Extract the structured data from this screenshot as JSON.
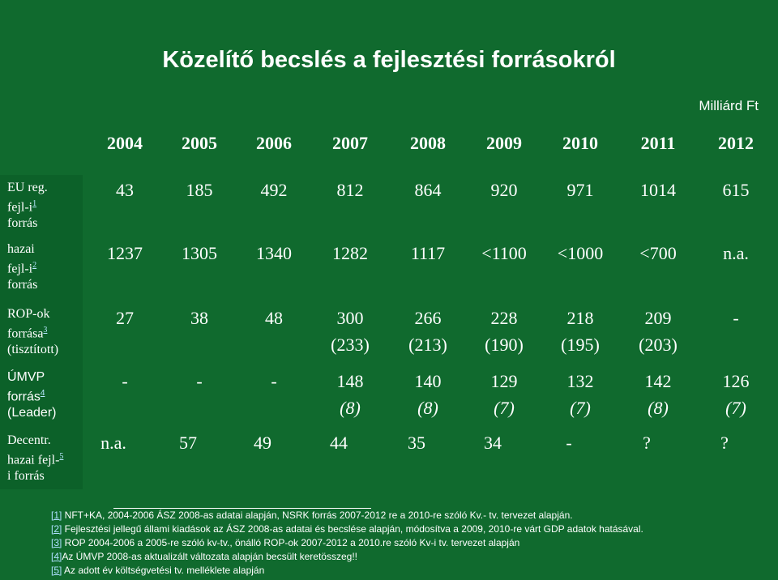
{
  "title": "Közelítő becslés a fejlesztési forrásokról",
  "unit": "Milliárd Ft",
  "years": [
    "2004",
    "2005",
    "2006",
    "2007",
    "2008",
    "2009",
    "2010",
    "2011",
    "2012"
  ],
  "rows": [
    {
      "label_lines": [
        "EU reg.",
        "fejl-i",
        "forrás"
      ],
      "ref": "1",
      "values": [
        "43",
        "185",
        "492",
        "812",
        "864",
        "920",
        "971",
        "1014",
        "615"
      ]
    },
    {
      "label_lines": [
        "hazai",
        "fejl-i",
        "forrás"
      ],
      "ref": "2",
      "values": [
        "1237",
        "1305",
        "1340",
        "1282",
        "1117",
        "<1100",
        "<1000",
        "<700",
        "n.a."
      ]
    },
    {
      "label_lines": [
        "ROP-ok",
        "forrása",
        "(tisztított)"
      ],
      "ref": "3",
      "values": [
        "27",
        "38",
        "48",
        "300",
        "266",
        "228",
        "218",
        "209",
        "-"
      ],
      "subvalues": [
        "",
        "",
        "",
        "(233)",
        "(213)",
        "(190)",
        "(195)",
        "(203)",
        ""
      ]
    },
    {
      "label_lines": [
        "ÚMVP",
        "forrás",
        "(Leader)"
      ],
      "ref": "4",
      "values": [
        "-",
        "-",
        "-",
        "148",
        "140",
        "129",
        "132",
        "142",
        "126"
      ],
      "subvalues": [
        "",
        "",
        "",
        "(8)",
        "(8)",
        "(7)",
        "(7)",
        "(8)",
        "(7)"
      ]
    },
    {
      "label_lines": [
        "Decentr.",
        "hazai fejl-",
        "i forrás"
      ],
      "ref": "5",
      "values": [
        "n.a.",
        "57",
        "49",
        "44",
        "35",
        "34",
        "-",
        "?",
        "?"
      ]
    }
  ],
  "notes": [
    {
      "ref": "[1]",
      "text": " NFT+KA, 2004-2006 ÁSZ 2008-as adatai alapján, NSRK forrás 2007-2012 re a 2010-re szóló Kv.- tv. tervezet alapján."
    },
    {
      "ref": "[2]",
      "text": " Fejlesztési jellegű állami kiadások az ÁSZ 2008-as adatai és becslése alapján, módosítva a 2009, 2010-re várt GDP adatok hatásával."
    },
    {
      "ref": "[3]",
      "text": " ROP 2004-2006 a 2005-re szóló kv-tv., önálló ROP-ok 2007-2012 a 2010.re szóló Kv-i tv. tervezet alapján"
    },
    {
      "ref": "[4]",
      "text": "Az ÚMVP 2008-as aktualizált változata alapján becsült keretösszeg!!"
    },
    {
      "ref": "[5]",
      "text": " Az adott év költségvetési tv. melléklete alapján"
    }
  ],
  "colors": {
    "background": "#106a2e",
    "text": "#ffffff",
    "link": "#aee0ff"
  }
}
